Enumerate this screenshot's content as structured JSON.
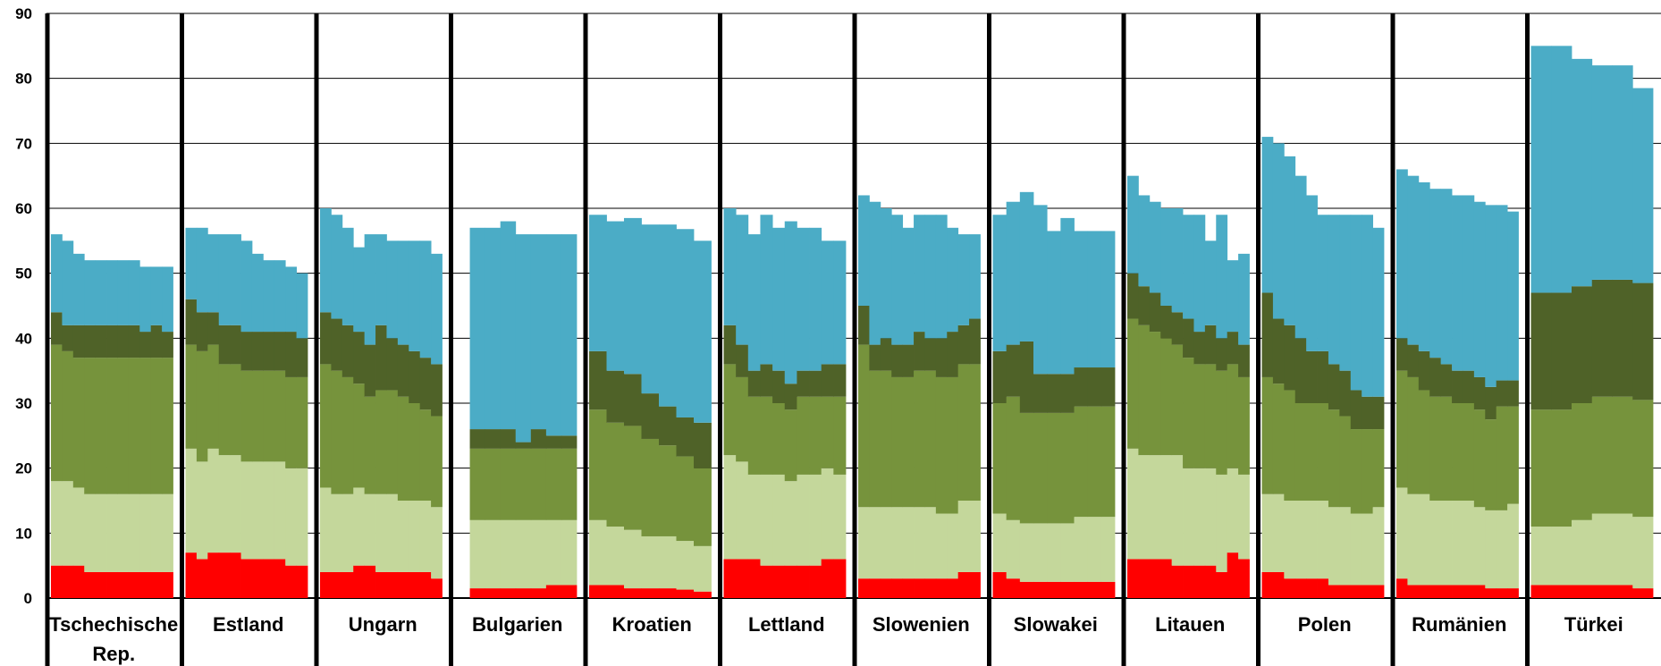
{
  "chart_data": {
    "type": "bar",
    "stacked": true,
    "ylim": [
      0,
      90
    ],
    "yticks": [
      0,
      10,
      20,
      30,
      40,
      50,
      60,
      70,
      80,
      90
    ],
    "grid": true,
    "legend": "none",
    "categories": [
      "Tschechische Rep.",
      "Estland",
      "Ungarn",
      "Bulgarien",
      "Kroatien",
      "Lettland",
      "Slowenien",
      "Slowakei",
      "Litauen",
      "Polen",
      "Rumänien",
      "Türkei"
    ],
    "colors": [
      "#ff0000",
      "#c4d79b",
      "#76933c",
      "#4f6228",
      "#4bacc6"
    ],
    "groups": [
      {
        "name": "Tschechische Rep.",
        "bars": [
          [
            5,
            13,
            21,
            5,
            12
          ],
          [
            5,
            13,
            20,
            4,
            13
          ],
          [
            5,
            12,
            20,
            5,
            11
          ],
          [
            4,
            12,
            21,
            5,
            10
          ],
          [
            4,
            12,
            21,
            5,
            10
          ],
          [
            4,
            12,
            21,
            5,
            10
          ],
          [
            4,
            12,
            21,
            5,
            10
          ],
          [
            4,
            12,
            21,
            5,
            10
          ],
          [
            4,
            12,
            21,
            4,
            10
          ],
          [
            4,
            12,
            21,
            5,
            9
          ],
          [
            4,
            12,
            21,
            4,
            10
          ]
        ]
      },
      {
        "name": "Estland",
        "bars": [
          [
            7,
            16,
            16,
            7,
            11
          ],
          [
            6,
            15,
            17,
            6,
            13
          ],
          [
            7,
            16,
            16,
            5,
            12
          ],
          [
            7,
            15,
            14,
            6,
            14
          ],
          [
            7,
            15,
            14,
            6,
            14
          ],
          [
            6,
            15,
            14,
            6,
            14
          ],
          [
            6,
            15,
            14,
            6,
            12
          ],
          [
            6,
            15,
            14,
            6,
            11
          ],
          [
            6,
            15,
            14,
            6,
            11
          ],
          [
            5,
            15,
            14,
            7,
            10
          ],
          [
            5,
            15,
            14,
            6,
            10
          ]
        ]
      },
      {
        "name": "Ungarn",
        "bars": [
          [
            4,
            13,
            19,
            8,
            16
          ],
          [
            4,
            12,
            19,
            8,
            16
          ],
          [
            4,
            12,
            18,
            8,
            15
          ],
          [
            5,
            12,
            16,
            8,
            13
          ],
          [
            5,
            11,
            15,
            8,
            17
          ],
          [
            4,
            12,
            16,
            10,
            14
          ],
          [
            4,
            12,
            16,
            8,
            15
          ],
          [
            4,
            11,
            16,
            8,
            16
          ],
          [
            4,
            11,
            15,
            8,
            17
          ],
          [
            4,
            11,
            14,
            8,
            18
          ],
          [
            3,
            11,
            14,
            8,
            17
          ]
        ]
      },
      {
        "name": "Bulgarien",
        "bars": [
          [
            0,
            0,
            0,
            0,
            0
          ],
          [
            1.5,
            10.5,
            11,
            3,
            31
          ],
          [
            1.5,
            10.5,
            11,
            3,
            31
          ],
          [
            1.5,
            10.5,
            11,
            3,
            32
          ],
          [
            1.5,
            10.5,
            11,
            1,
            32
          ],
          [
            1.5,
            10.5,
            11,
            3,
            30
          ],
          [
            2,
            10,
            11,
            2,
            31
          ],
          [
            2,
            10,
            11,
            2,
            31
          ]
        ]
      },
      {
        "name": "Kroatien",
        "bars": [
          [
            2,
            10,
            17,
            9,
            21
          ],
          [
            2,
            9,
            16,
            8,
            23
          ],
          [
            1.5,
            9,
            16,
            8,
            24
          ],
          [
            1.5,
            8,
            15,
            7,
            26
          ],
          [
            1.5,
            8,
            14,
            6,
            28
          ],
          [
            1.3,
            7.5,
            13,
            6,
            29
          ],
          [
            1,
            7,
            12,
            7,
            28
          ]
        ]
      },
      {
        "name": "Lettland",
        "bars": [
          [
            6,
            16,
            14,
            6,
            18
          ],
          [
            6,
            15,
            13,
            5,
            20
          ],
          [
            6,
            13,
            12,
            4,
            21
          ],
          [
            5,
            14,
            12,
            5,
            23
          ],
          [
            5,
            14,
            11,
            5,
            22
          ],
          [
            5,
            13,
            11,
            4,
            25
          ],
          [
            5,
            14,
            12,
            4,
            22
          ],
          [
            5,
            14,
            12,
            4,
            22
          ],
          [
            6,
            14,
            11,
            5,
            19
          ],
          [
            6,
            13,
            12,
            5,
            19
          ]
        ]
      },
      {
        "name": "Slowenien",
        "bars": [
          [
            3,
            11,
            25,
            6,
            17
          ],
          [
            3,
            11,
            21,
            4,
            22
          ],
          [
            3,
            11,
            21,
            5,
            20
          ],
          [
            3,
            11,
            20,
            5,
            20
          ],
          [
            3,
            11,
            20,
            5,
            18
          ],
          [
            3,
            11,
            21,
            6,
            18
          ],
          [
            3,
            11,
            21,
            5,
            19
          ],
          [
            3,
            10,
            21,
            6,
            19
          ],
          [
            3,
            10,
            21,
            7,
            16
          ],
          [
            4,
            11,
            21,
            6,
            14
          ],
          [
            4,
            11,
            21,
            7,
            13
          ]
        ]
      },
      {
        "name": "Slowakei",
        "bars": [
          [
            4,
            9,
            17,
            8,
            21
          ],
          [
            3,
            9,
            19,
            8,
            22
          ],
          [
            2.5,
            9,
            17,
            11,
            23
          ],
          [
            2.5,
            9,
            17,
            6,
            26
          ],
          [
            2.5,
            9,
            17,
            6,
            22
          ],
          [
            2.5,
            9,
            17,
            6,
            24
          ],
          [
            2.5,
            10,
            17,
            6,
            21
          ],
          [
            2.5,
            10,
            17,
            6,
            21
          ],
          [
            2.5,
            10,
            17,
            6,
            21
          ]
        ]
      },
      {
        "name": "Litauen",
        "bars": [
          [
            6,
            17,
            20,
            7,
            15
          ],
          [
            6,
            16,
            20,
            6,
            14
          ],
          [
            6,
            16,
            19,
            6,
            14
          ],
          [
            6,
            16,
            18,
            5,
            15
          ],
          [
            5,
            17,
            17,
            5,
            16
          ],
          [
            5,
            15,
            17,
            6,
            16
          ],
          [
            5,
            15,
            16,
            5,
            18
          ],
          [
            5,
            15,
            16,
            6,
            13
          ],
          [
            4,
            15,
            16,
            5,
            19
          ],
          [
            7,
            13,
            16,
            5,
            11
          ],
          [
            6,
            13,
            15,
            5,
            14
          ]
        ]
      },
      {
        "name": "Polen",
        "bars": [
          [
            4,
            12,
            18,
            13,
            24
          ],
          [
            4,
            12,
            17,
            10,
            27
          ],
          [
            3,
            12,
            17,
            10,
            26
          ],
          [
            3,
            12,
            15,
            10,
            25
          ],
          [
            3,
            12,
            15,
            8,
            24
          ],
          [
            3,
            12,
            15,
            8,
            21
          ],
          [
            2,
            12,
            15,
            7,
            23
          ],
          [
            2,
            12,
            14,
            7,
            24
          ],
          [
            2,
            11,
            13,
            6,
            27
          ],
          [
            2,
            11,
            13,
            5,
            28
          ],
          [
            2,
            12,
            12,
            5,
            26
          ]
        ]
      },
      {
        "name": "Rumänien",
        "bars": [
          [
            3,
            14,
            18,
            5,
            26
          ],
          [
            2,
            14,
            18,
            5,
            26
          ],
          [
            2,
            14,
            16,
            6,
            26
          ],
          [
            2,
            13,
            16,
            6,
            26
          ],
          [
            2,
            13,
            16,
            5,
            27
          ],
          [
            2,
            13,
            15,
            5,
            27
          ],
          [
            2,
            13,
            15,
            5,
            27
          ],
          [
            2,
            12,
            15,
            5,
            27
          ],
          [
            1.5,
            12,
            14,
            5,
            28
          ],
          [
            1.5,
            12,
            16,
            4,
            27
          ],
          [
            1.5,
            13,
            15,
            4,
            26
          ]
        ]
      },
      {
        "name": "Türkei",
        "bars": [
          [
            2,
            9,
            18,
            18,
            38
          ],
          [
            2,
            9,
            18,
            18,
            38
          ],
          [
            2,
            10,
            18,
            18,
            35
          ],
          [
            2,
            11,
            18,
            18,
            33
          ],
          [
            2,
            11,
            18,
            18,
            33
          ],
          [
            1.5,
            11,
            18,
            18,
            30
          ]
        ]
      }
    ]
  }
}
